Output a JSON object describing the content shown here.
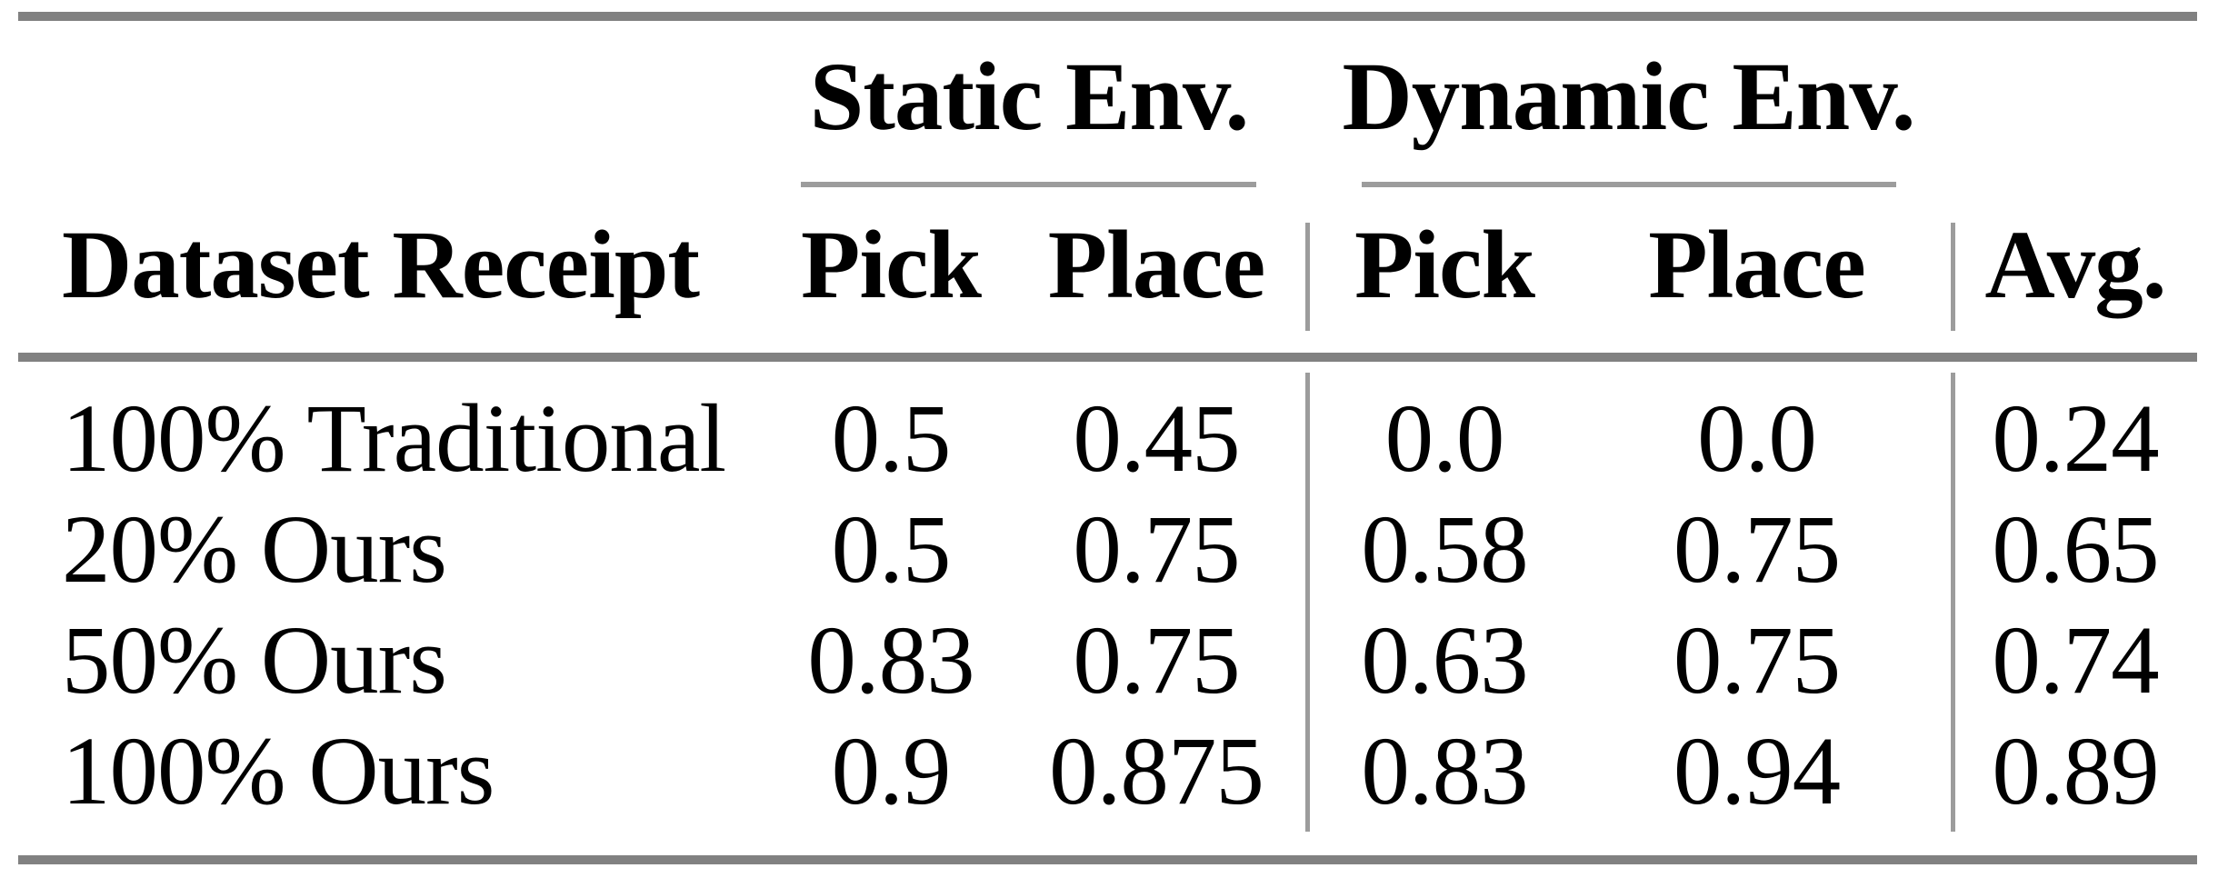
{
  "table": {
    "group_headers": [
      {
        "label": "Static Env."
      },
      {
        "label": "Dynamic Env."
      }
    ],
    "column_headers": {
      "row_label": "Dataset Receipt",
      "static_pick": "Pick",
      "static_place": "Place",
      "dynamic_pick": "Pick",
      "dynamic_place": "Place",
      "avg": "Avg."
    },
    "rows": [
      {
        "label": "100% Traditional",
        "values": [
          "0.5",
          "0.45",
          "0.0",
          "0.0",
          "0.24"
        ]
      },
      {
        "label": "20% Ours",
        "values": [
          "0.5",
          "0.75",
          "0.58",
          "0.75",
          "0.65"
        ]
      },
      {
        "label": "50% Ours",
        "values": [
          "0.83",
          "0.75",
          "0.63",
          "0.75",
          "0.74"
        ]
      },
      {
        "label": "100% Ours",
        "values": [
          "0.9",
          "0.875",
          "0.83",
          "0.94",
          "0.89"
        ]
      }
    ],
    "colors": {
      "rule_thick": "#818181",
      "rule_thin": "#9c9c9c",
      "text": "#000000",
      "background": "#ffffff"
    }
  }
}
